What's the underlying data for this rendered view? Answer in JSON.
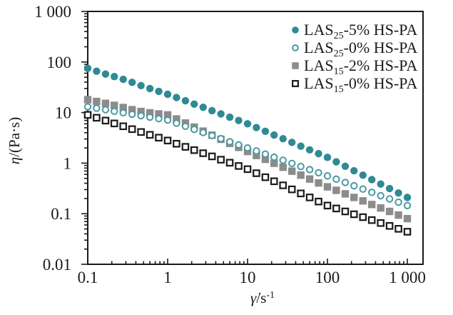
{
  "figure": {
    "background": "#ffffff",
    "axis_color": "#1a1a1a",
    "text_color": "#1a1a1a"
  },
  "chart_data": {
    "type": "scatter",
    "x_scale": "log",
    "y_scale": "log",
    "xlim": [
      0.1,
      1500
    ],
    "ylim": [
      0.01,
      1000
    ],
    "xlabel": {
      "symbol": "γ̇",
      "unit": "/s",
      "exponent": "-1",
      "text": "γ̇/s-1"
    },
    "ylabel": {
      "symbol": "η",
      "unit": "/(Pa·s)",
      "text": "η/(Pa·s)"
    },
    "x_ticks": {
      "values": [
        0.1,
        1,
        10,
        100,
        1000
      ],
      "labels": [
        "0.1",
        "1",
        "10",
        "100",
        "1 000"
      ]
    },
    "y_ticks": {
      "values": [
        0.01,
        0.1,
        1,
        10,
        100,
        1000
      ],
      "labels": [
        "0.01",
        "0.1",
        "1",
        "10",
        "100",
        "1 000"
      ]
    },
    "grid": false,
    "legend_position": "top-right",
    "x": [
      0.1,
      0.129,
      0.167,
      0.215,
      0.278,
      0.359,
      0.464,
      0.599,
      0.774,
      1,
      1.29,
      1.67,
      2.15,
      2.78,
      3.59,
      4.64,
      5.99,
      7.74,
      10,
      12.9,
      16.7,
      21.5,
      27.8,
      35.9,
      46.4,
      59.9,
      77.4,
      100,
      129,
      167,
      215,
      278,
      359,
      464,
      599,
      774,
      1000
    ],
    "series": [
      {
        "label": "LAS25-5% HS-PA",
        "label_prefix": "LAS",
        "label_sub": "25",
        "label_suffix": "-5% HS-PA",
        "marker": "circle",
        "fill_style": "filled",
        "color": "#2f8a94",
        "values": [
          75,
          65.8,
          57.7,
          51.5,
          45.5,
          39.5,
          34.1,
          29.9,
          26.2,
          23,
          19.8,
          17.1,
          14.7,
          12.7,
          10.9,
          9.4,
          8.1,
          6.97,
          6,
          5.06,
          4.27,
          3.6,
          3.04,
          2.57,
          2.16,
          1.83,
          1.54,
          1.3,
          1.06,
          0.867,
          0.708,
          0.578,
          0.472,
          0.386,
          0.315,
          0.257,
          0.21
        ]
      },
      {
        "label": "LAS25-0% HS-PA",
        "label_prefix": "LAS",
        "label_sub": "25",
        "label_suffix": "-0% HS-PA",
        "marker": "circle",
        "fill_style": "open",
        "color": "#4a99a2",
        "values": [
          13,
          12.2,
          11.4,
          10.6,
          9.93,
          9.28,
          8.68,
          8.11,
          7.59,
          7.1,
          6.17,
          5.36,
          4.65,
          4.04,
          3.51,
          3.05,
          2.65,
          2.3,
          2,
          1.74,
          1.51,
          1.31,
          1.14,
          0.988,
          0.858,
          0.745,
          0.647,
          0.56,
          0.482,
          0.415,
          0.357,
          0.307,
          0.264,
          0.227,
          0.196,
          0.169,
          0.145
        ]
      },
      {
        "label": "LAS15-2% HS-PA",
        "label_prefix": "LAS",
        "label_sub": "15",
        "label_suffix": "-2% HS-PA",
        "marker": "square",
        "fill_style": "filled",
        "color": "#8c8c8c",
        "values": [
          18,
          16.6,
          15.2,
          13.9,
          12.6,
          11.4,
          10.5,
          9.9,
          9.4,
          9,
          7.48,
          6.21,
          5.16,
          4.29,
          3.57,
          2.96,
          2.46,
          2.05,
          1.7,
          1.42,
          1.19,
          0.993,
          0.83,
          0.694,
          0.58,
          0.485,
          0.406,
          0.34,
          0.29,
          0.247,
          0.21,
          0.179,
          0.152,
          0.13,
          0.111,
          0.094,
          0.08
        ]
      },
      {
        "label": "LAS15-0% HS-PA",
        "label_prefix": "LAS",
        "label_sub": "15",
        "label_suffix": "-0% HS-PA",
        "marker": "square",
        "fill_style": "open",
        "color": "#1a1a1a",
        "values": [
          9,
          7.9,
          6.94,
          6.1,
          5.36,
          4.7,
          4.13,
          3.63,
          3.19,
          2.8,
          2.42,
          2.1,
          1.81,
          1.57,
          1.36,
          1.17,
          1.02,
          0.879,
          0.76,
          0.632,
          0.526,
          0.438,
          0.364,
          0.303,
          0.252,
          0.21,
          0.174,
          0.145,
          0.127,
          0.111,
          0.0975,
          0.0854,
          0.0748,
          0.0655,
          0.0574,
          0.0503,
          0.044
        ]
      }
    ]
  }
}
